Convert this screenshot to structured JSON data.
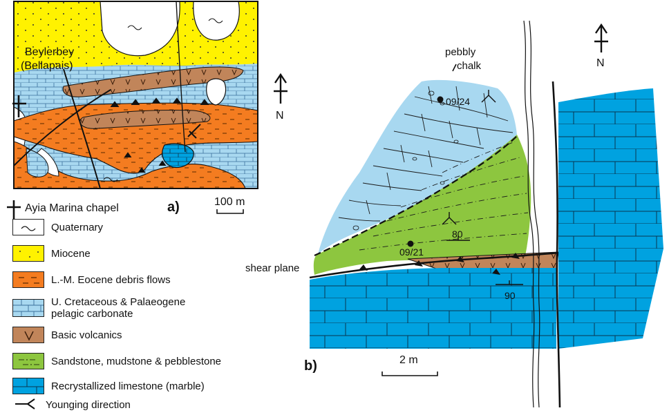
{
  "map_a": {
    "panel_label": "a)",
    "place_name_1": "Beylerbey",
    "place_name_2": "(Bellapais)",
    "north_label": "N",
    "scale_label": "100 m"
  },
  "section_b": {
    "panel_label": "b)",
    "north_label": "N",
    "scale_label": "2 m",
    "pebbly_label_1": "pebbly",
    "pebbly_label_2": "chalk",
    "sample_upper": "09/24",
    "sample_lower": "09/21",
    "dip_upper": "80",
    "dip_lower": "90",
    "shear_label": "shear plane"
  },
  "legend": {
    "chapel": "Ayia Marina chapel",
    "items": [
      {
        "label": "Quaternary",
        "color": "#ffffff"
      },
      {
        "label": "Miocene",
        "color": "#fff200"
      },
      {
        "label": "L.-M. Eocene debris flows",
        "color": "#f47c20"
      },
      {
        "label": "U. Cretaceous & Palaeogene",
        "label2": "pelagic carbonate",
        "color": "#a8d8f0"
      },
      {
        "label": "Basic volcanics",
        "color": "#c1855a"
      },
      {
        "label": "Sandstone, mudstone & pebblestone",
        "color": "#8dc63f"
      },
      {
        "label": "Recrystallized limestone (marble)",
        "color": "#00a2e0"
      }
    ],
    "younging": "Younging direction"
  },
  "colors": {
    "quaternary": "#ffffff",
    "miocene": "#fff200",
    "debris": "#f47c20",
    "pelagic": "#a8d8f0",
    "volcanics": "#c1855a",
    "sandstone": "#8dc63f",
    "marble": "#00a2e0"
  }
}
